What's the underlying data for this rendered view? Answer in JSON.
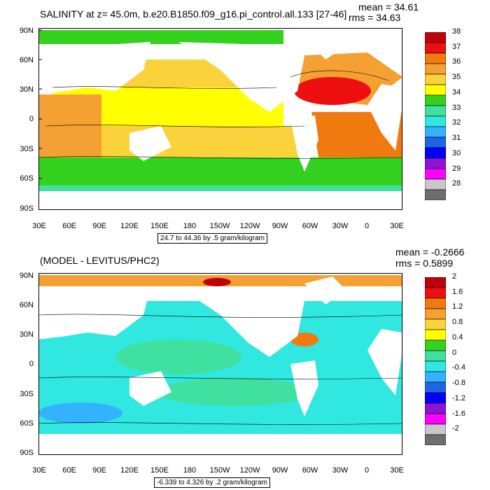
{
  "chart_data": [
    {
      "type": "heatmap",
      "title": "SALINITY at z=  45.0m, b.e20.B1850.f09_g16.pi_control.all.133 [27-46]",
      "stats": [
        "mean = 34.61",
        "rms = 34.63"
      ],
      "yticks": [
        "90N",
        "60N",
        "30N",
        "0",
        "30S",
        "60S",
        "90S"
      ],
      "xticks": [
        "30E",
        "60E",
        "90E",
        "120E",
        "150E",
        "180",
        "150W",
        "120W",
        "90W",
        "60W",
        "30W",
        "0",
        "30E"
      ],
      "subtitle": "24.7 to 44.36 by .5 gram/kilogram",
      "colorbar": {
        "labels": [
          "38",
          "37",
          "36",
          "35",
          "34",
          "33",
          "32",
          "31",
          "30",
          "29",
          "28"
        ],
        "colors": [
          "#c0000a",
          "#ee1010",
          "#f07a10",
          "#f4a032",
          "#fad23c",
          "#ffff00",
          "#34d21e",
          "#40e0a0",
          "#30e8e0",
          "#33b2ff",
          "#1e64e6",
          "#0000ff",
          "#8c14d2",
          "#ff00ff",
          "#c8c8c8",
          "#6e6e6e"
        ]
      }
    },
    {
      "type": "heatmap",
      "title": "(MODEL - LEVITUS/PHC2)",
      "stats": [
        "mean = -0.2666",
        "rms = 0.5899"
      ],
      "yticks": [
        "90N",
        "60N",
        "30N",
        "0",
        "30S",
        "60S",
        "90S"
      ],
      "xticks": [
        "30E",
        "60E",
        "90E",
        "120E",
        "150E",
        "180",
        "150W",
        "120W",
        "90W",
        "60W",
        "30W",
        "0",
        "30E"
      ],
      "subtitle": "-6.339 to 4.326 by .2 gram/kilogram",
      "colorbar": {
        "labels": [
          "2",
          "1.6",
          "1.2",
          "0.8",
          "0.4",
          "0",
          "-0.4",
          "-0.8",
          "-1.2",
          "-1.6",
          "-2"
        ],
        "colors": [
          "#c0000a",
          "#ee1010",
          "#f07a10",
          "#f4a032",
          "#fad23c",
          "#ffff00",
          "#34d21e",
          "#40e0a0",
          "#30e8e0",
          "#33b2ff",
          "#1e64e6",
          "#0000ff",
          "#8c14d2",
          "#ff00ff",
          "#c8c8c8",
          "#6e6e6e"
        ]
      }
    }
  ]
}
